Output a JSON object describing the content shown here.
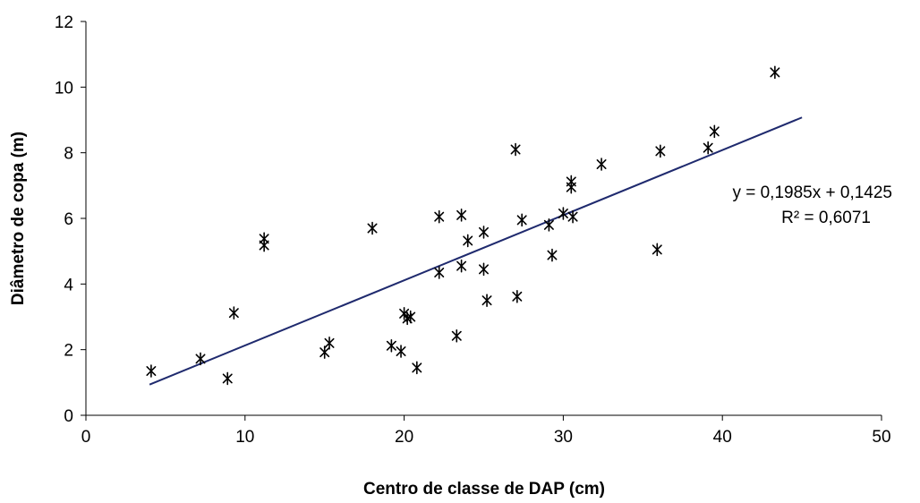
{
  "chart_data": {
    "type": "scatter",
    "title": "",
    "xlabel": "Centro de classe de DAP (cm)",
    "ylabel": "Diâmetro de copa (m)",
    "xlim": [
      0,
      50
    ],
    "ylim": [
      0,
      12
    ],
    "xticks": [
      0,
      10,
      20,
      30,
      40,
      50
    ],
    "yticks": [
      0,
      2,
      4,
      6,
      8,
      10,
      12
    ],
    "xtick_labels": [
      "0",
      "10",
      "20",
      "30",
      "40",
      "50"
    ],
    "ytick_labels": [
      "0",
      "2",
      "4",
      "6",
      "8",
      "10",
      "12"
    ],
    "grid": false,
    "legend": "none",
    "marker": "asterisk",
    "marker_color": "#000000",
    "trendline_color": "#1f2a6e",
    "series": [
      {
        "points": [
          [
            4.1,
            1.35
          ],
          [
            7.2,
            1.72
          ],
          [
            8.9,
            1.12
          ],
          [
            9.3,
            3.12
          ],
          [
            11.2,
            5.38
          ],
          [
            11.2,
            5.18
          ],
          [
            15.0,
            1.92
          ],
          [
            15.3,
            2.2
          ],
          [
            18.0,
            5.7
          ],
          [
            19.2,
            2.12
          ],
          [
            19.8,
            1.95
          ],
          [
            20.0,
            3.1
          ],
          [
            20.2,
            2.95
          ],
          [
            20.4,
            3.0
          ],
          [
            20.8,
            1.45
          ],
          [
            22.2,
            6.05
          ],
          [
            22.2,
            4.35
          ],
          [
            23.3,
            2.42
          ],
          [
            23.6,
            6.1
          ],
          [
            23.6,
            4.55
          ],
          [
            24.0,
            5.32
          ],
          [
            25.0,
            5.58
          ],
          [
            25.0,
            4.45
          ],
          [
            25.2,
            3.5
          ],
          [
            27.0,
            8.1
          ],
          [
            27.1,
            3.62
          ],
          [
            27.4,
            5.95
          ],
          [
            29.1,
            5.8
          ],
          [
            29.3,
            4.88
          ],
          [
            30.0,
            6.15
          ],
          [
            30.5,
            7.12
          ],
          [
            30.5,
            6.95
          ],
          [
            30.6,
            6.05
          ],
          [
            32.4,
            7.65
          ],
          [
            35.9,
            5.05
          ],
          [
            36.1,
            8.05
          ],
          [
            39.1,
            8.15
          ],
          [
            39.5,
            8.65
          ],
          [
            43.3,
            10.45
          ]
        ]
      }
    ],
    "trendline": {
      "slope": 0.1985,
      "intercept": 0.1425,
      "x_range": [
        4,
        45
      ],
      "equation": "y = 0,1985x + 0,1425",
      "r2": "R² = 0,6071"
    }
  }
}
